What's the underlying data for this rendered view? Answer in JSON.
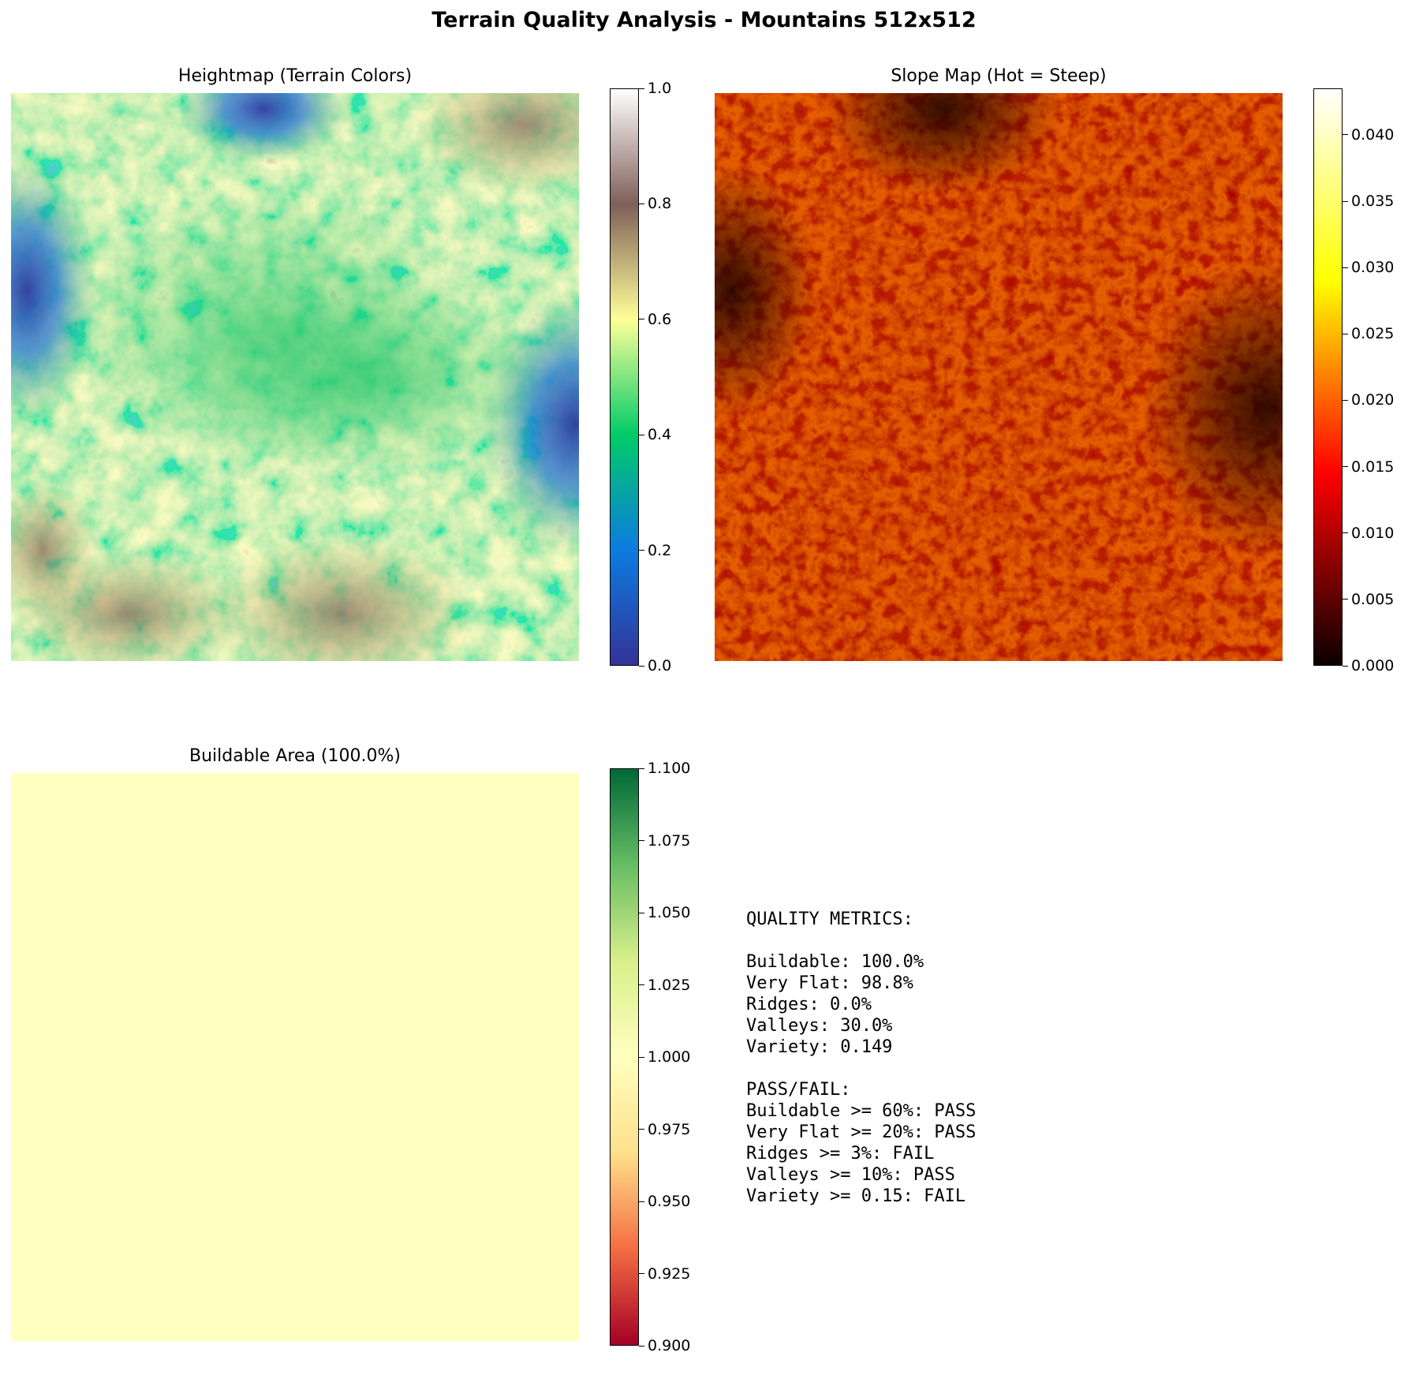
{
  "figure": {
    "title": "Terrain Quality Analysis - Mountains 512x512"
  },
  "colors": {
    "terrain_cmap": [
      "#333399",
      "#0c7ce0",
      "#00cc66",
      "#ffff99",
      "#7f5f59",
      "#ffffff"
    ],
    "hot_cmap": [
      "#0b0000",
      "#ff0000",
      "#ffff00",
      "#ffffff"
    ],
    "rdylgn_cmap": [
      "#a50026",
      "#f46d43",
      "#fee08b",
      "#ffffbf",
      "#d9ef8b",
      "#66bd63",
      "#006837"
    ],
    "buildable_fill": "#ffffbf"
  },
  "chart_data": [
    {
      "type": "heatmap",
      "title": "Heightmap (Terrain Colors)",
      "colormap": "terrain",
      "grid": false,
      "colorbar": {
        "min": 0.0,
        "max": 1.0,
        "ticks": [
          0.0,
          0.2,
          0.4,
          0.6,
          0.8,
          1.0
        ],
        "tick_labels": [
          "0.0",
          "0.2",
          "0.4",
          "0.6",
          "0.8",
          "1.0"
        ]
      }
    },
    {
      "type": "heatmap",
      "title": "Slope Map (Hot = Steep)",
      "colormap": "hot",
      "grid": false,
      "colorbar": {
        "min": 0.0,
        "max": 0.0435,
        "ticks": [
          0.0,
          0.005,
          0.01,
          0.015,
          0.02,
          0.025,
          0.03,
          0.035,
          0.04
        ],
        "tick_labels": [
          "0.000",
          "0.005",
          "0.010",
          "0.015",
          "0.020",
          "0.025",
          "0.030",
          "0.035",
          "0.040"
        ]
      }
    },
    {
      "type": "heatmap",
      "title": "Buildable Area (100.0%)",
      "colormap": "RdYlGn",
      "uniform_value": 1.0,
      "grid": false,
      "colorbar": {
        "min": 0.9,
        "max": 1.1,
        "ticks": [
          0.9,
          0.925,
          0.95,
          0.975,
          1.0,
          1.025,
          1.05,
          1.075,
          1.1
        ],
        "tick_labels": [
          "0.900",
          "0.925",
          "0.950",
          "0.975",
          "1.000",
          "1.025",
          "1.050",
          "1.075",
          "1.100"
        ]
      }
    }
  ],
  "metrics": {
    "lines": [
      "QUALITY METRICS:",
      "",
      "Buildable: 100.0%",
      "Very Flat: 98.8%",
      "Ridges: 0.0%",
      "Valleys: 30.0%",
      "Variety: 0.149",
      "",
      "PASS/FAIL:",
      "Buildable >= 60%: PASS",
      "Very Flat >= 20%: PASS",
      "Ridges >= 3%: FAIL",
      "Valleys >= 10%: PASS",
      "Variety >= 0.15: FAIL"
    ]
  }
}
